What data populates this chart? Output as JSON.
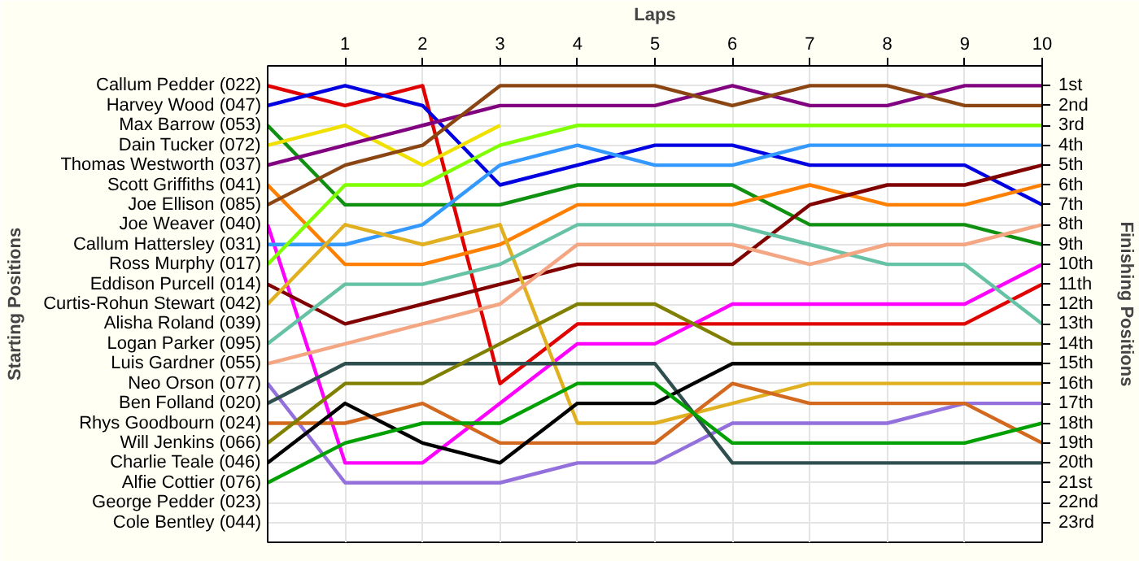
{
  "chart_data": {
    "type": "line",
    "xlabel": "Laps",
    "ylabel": "Finishing Positions",
    "x": [
      0,
      1,
      2,
      3,
      4,
      5,
      6,
      7,
      8,
      9,
      10
    ],
    "xlim": [
      0,
      10
    ],
    "xticks": [
      1,
      2,
      3,
      4,
      5,
      6,
      7,
      8,
      9,
      10
    ],
    "ylim": [
      24,
      0
    ],
    "yticks": [
      {
        "value": 1,
        "label": "1st"
      },
      {
        "value": 2,
        "label": "2nd"
      },
      {
        "value": 3,
        "label": "3rd"
      },
      {
        "value": 4,
        "label": "4th"
      },
      {
        "value": 5,
        "label": "5th"
      },
      {
        "value": 6,
        "label": "6th"
      },
      {
        "value": 7,
        "label": "7th"
      },
      {
        "value": 8,
        "label": "8th"
      },
      {
        "value": 9,
        "label": "9th"
      },
      {
        "value": 10,
        "label": "10th"
      },
      {
        "value": 11,
        "label": "11th"
      },
      {
        "value": 12,
        "label": "12th"
      },
      {
        "value": 13,
        "label": "13th"
      },
      {
        "value": 14,
        "label": "14th"
      },
      {
        "value": 15,
        "label": "15th"
      },
      {
        "value": 16,
        "label": "16th"
      },
      {
        "value": 17,
        "label": "17th"
      },
      {
        "value": 18,
        "label": "18th"
      },
      {
        "value": 19,
        "label": "19th"
      },
      {
        "value": 20,
        "label": "20th"
      },
      {
        "value": 21,
        "label": "21st"
      },
      {
        "value": 22,
        "label": "22nd"
      },
      {
        "value": 23,
        "label": "23rd"
      }
    ],
    "annotations": [
      "Starting Positions",
      "Alisha Roland (039)",
      "George Pedder (023)",
      "Cole Bentley (044)"
    ],
    "grid": true,
    "line_style": "solid",
    "legend": "left",
    "series": [
      {
        "name": "Callum Pedder (022)",
        "color": "#e00000",
        "values": [
          1,
          2,
          1,
          16,
          13,
          13,
          13,
          13,
          13,
          13,
          11
        ]
      },
      {
        "name": "Harvey Wood (047)",
        "color": "#0000e0",
        "values": [
          2,
          1,
          2,
          6,
          5,
          4,
          4,
          5,
          5,
          5,
          7
        ]
      },
      {
        "name": "Max Barrow (053)",
        "color": "#109010",
        "values": [
          3,
          7,
          7,
          7,
          6,
          6,
          6,
          8,
          8,
          8,
          9
        ]
      },
      {
        "name": "Dain Tucker (072)",
        "color": "#f0e000",
        "values": [
          4,
          3,
          5,
          3,
          null,
          null,
          null,
          null,
          null,
          null,
          null
        ]
      },
      {
        "name": "Thomas Westworth (037)",
        "color": "#800080",
        "values": [
          5,
          4,
          3,
          2,
          2,
          2,
          1,
          2,
          2,
          1,
          1
        ]
      },
      {
        "name": "Scott Griffiths (041)",
        "color": "#ff8000",
        "values": [
          6,
          10,
          10,
          9,
          7,
          7,
          7,
          6,
          7,
          7,
          6
        ]
      },
      {
        "name": "Joe Ellison (085)",
        "color": "#8b4513",
        "values": [
          7,
          5,
          4,
          1,
          1,
          1,
          2,
          1,
          1,
          2,
          2
        ]
      },
      {
        "name": "Joe Weaver (040)",
        "color": "#ff00ff",
        "values": [
          8,
          20,
          20,
          17,
          14,
          14,
          12,
          12,
          12,
          12,
          10
        ]
      },
      {
        "name": "Callum Hattersley (031)",
        "color": "#3399ff",
        "values": [
          9,
          9,
          8,
          5,
          4,
          5,
          5,
          4,
          4,
          4,
          4
        ]
      },
      {
        "name": "Ross Murphy (017)",
        "color": "#80ff00",
        "values": [
          10,
          6,
          6,
          4,
          3,
          3,
          3,
          3,
          3,
          3,
          3
        ]
      },
      {
        "name": "Eddison Purcell (014)",
        "color": "#800000",
        "values": [
          11,
          13,
          12,
          11,
          10,
          10,
          10,
          7,
          6,
          6,
          5
        ]
      },
      {
        "name": "Curtis-Rohun Stewart (042)",
        "color": "#e0b020",
        "values": [
          12,
          8,
          9,
          8,
          18,
          18,
          17,
          16,
          16,
          16,
          16
        ]
      },
      {
        "name": "Logan Parker (095)",
        "color": "#66c2a5",
        "values": [
          14,
          11,
          11,
          10,
          8,
          8,
          8,
          9,
          10,
          10,
          13
        ]
      },
      {
        "name": "Luis Gardner (055)",
        "color": "#f4a582",
        "values": [
          15,
          14,
          13,
          12,
          9,
          9,
          9,
          10,
          9,
          9,
          8
        ]
      },
      {
        "name": "Neo Orson (077)",
        "color": "#9370db",
        "values": [
          16,
          21,
          21,
          21,
          20,
          20,
          18,
          18,
          18,
          17,
          17
        ]
      },
      {
        "name": "Ben Folland (020)",
        "color": "#2f4f4f",
        "values": [
          17,
          15,
          15,
          15,
          15,
          15,
          20,
          20,
          20,
          20,
          20
        ]
      },
      {
        "name": "Rhys Goodbourn (024)",
        "color": "#d2691e",
        "values": [
          18,
          18,
          17,
          19,
          19,
          19,
          16,
          17,
          17,
          17,
          19
        ]
      },
      {
        "name": "Will Jenkins (066)",
        "color": "#808000",
        "values": [
          19,
          16,
          16,
          14,
          12,
          12,
          14,
          14,
          14,
          14,
          14
        ]
      },
      {
        "name": "Charlie Teale (046)",
        "color": "#000000",
        "values": [
          20,
          17,
          19,
          20,
          17,
          17,
          15,
          15,
          15,
          15,
          15
        ]
      },
      {
        "name": "Alfie Cottier (076)",
        "color": "#00a000",
        "values": [
          21,
          19,
          18,
          18,
          16,
          16,
          19,
          19,
          19,
          19,
          18
        ]
      }
    ]
  }
}
